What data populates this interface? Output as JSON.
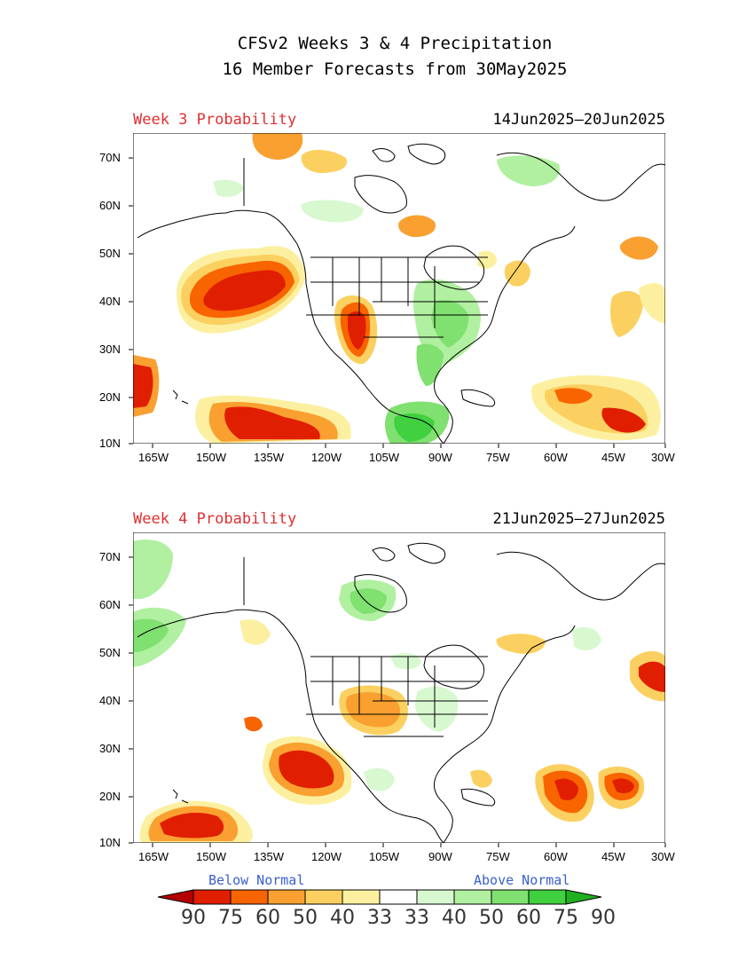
{
  "title": {
    "line1": "CFSv2 Weeks 3 & 4 Precipitation",
    "line2": "16 Member Forecasts from 30May2025"
  },
  "panels": [
    {
      "name": "Week 3 Probability",
      "dates": "14Jun2025—20Jun2025",
      "lat_labels": [
        "70N",
        "60N",
        "50N",
        "40N",
        "30N",
        "20N",
        "10N"
      ],
      "lon_labels": [
        "165W",
        "150W",
        "135W",
        "120W",
        "105W",
        "90W",
        "75W",
        "60W",
        "45W",
        "30W"
      ]
    },
    {
      "name": "Week 4 Probability",
      "dates": "21Jun2025—27Jun2025",
      "lat_labels": [
        "70N",
        "60N",
        "50N",
        "40N",
        "30N",
        "20N",
        "10N"
      ],
      "lon_labels": [
        "165W",
        "150W",
        "135W",
        "120W",
        "105W",
        "90W",
        "75W",
        "60W",
        "45W",
        "30W"
      ]
    }
  ],
  "legend": {
    "below_label": "Below Normal",
    "above_label": "Above Normal",
    "numbers": [
      "90",
      "75",
      "60",
      "50",
      "40",
      "33",
      "33",
      "40",
      "50",
      "60",
      "75",
      "90"
    ],
    "colors": [
      "#b40000",
      "#e01e00",
      "#f86400",
      "#f9a030",
      "#fbd060",
      "#fcf0a0",
      "#ffffff",
      "#d8f8d0",
      "#b0f0a0",
      "#80e070",
      "#40d040",
      "#20b020"
    ]
  }
}
